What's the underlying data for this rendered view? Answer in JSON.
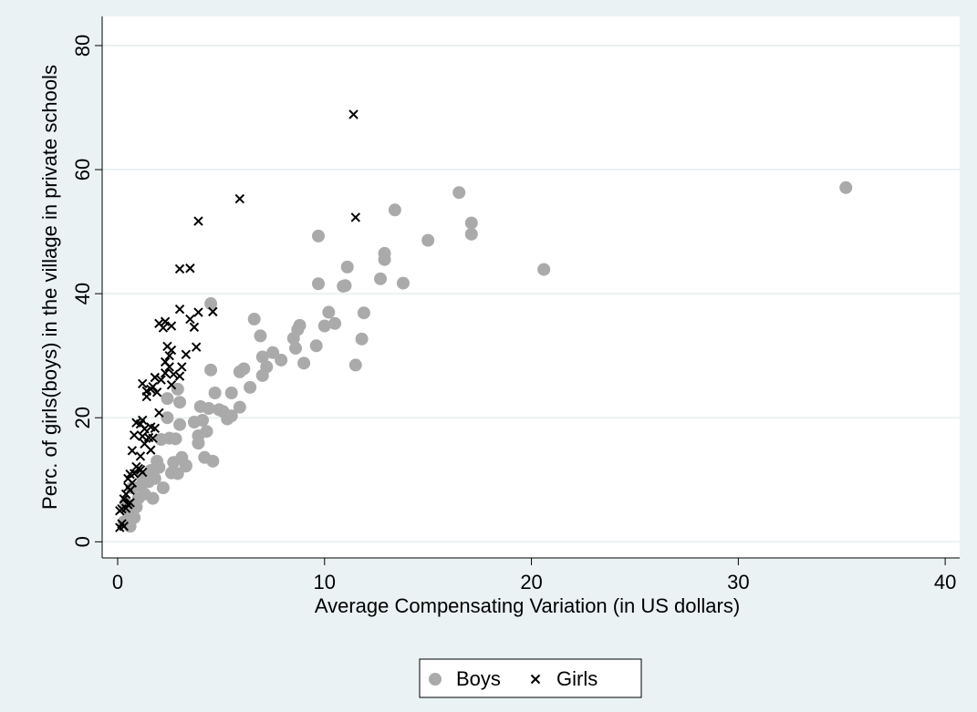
{
  "chart_data": {
    "type": "scatter",
    "x_label": "Average Compensating Variation (in US dollars)",
    "y_label": "Perc. of girls(boys) in the village in private schools",
    "xlim": [
      -0.75,
      40.7
    ],
    "ylim": [
      -2.6,
      84.7
    ],
    "xticks": [
      0,
      10,
      20,
      30,
      40
    ],
    "yticks": [
      0,
      20,
      40,
      60,
      80
    ],
    "grid": true,
    "series": [
      {
        "name": "Boys",
        "color": "#aaaaaa",
        "marker": "circle",
        "x": [
          35.2,
          20.6,
          16.5,
          17.1,
          17.1,
          15,
          13.4,
          12.9,
          12.9,
          13.8,
          12.7,
          11.1,
          10.9,
          11,
          9.7,
          9.7,
          10.2,
          10,
          10.5,
          11.9,
          11.8,
          11.5,
          9.6,
          9.0,
          8.8,
          8.7,
          8.6,
          8.5,
          7.9,
          7.5,
          7.2,
          7.0,
          7.0,
          6.9,
          6.6,
          6.4,
          6.1,
          5.9,
          5.9,
          5.5,
          5.5,
          5.3,
          5.1,
          4.9,
          4.7,
          4.5,
          4.5,
          4.4,
          4.3,
          4.1,
          4.0,
          3.9,
          3.9,
          3.7,
          4.6,
          4.2,
          3.3,
          3.1,
          3.0,
          2.9,
          3.0,
          2.8,
          2.7,
          2.5,
          2.4,
          2.4,
          2.6,
          2.2,
          2.1,
          1.9,
          1.8,
          1.7,
          1.5,
          1.3,
          1.0,
          0.9,
          0.8,
          0.6,
          0.5,
          0.3,
          0.4,
          0.7,
          1.2,
          2.0,
          3.3,
          2.9,
          1.6,
          1.1
        ],
        "y": [
          57.1,
          43.9,
          56.3,
          51.4,
          49.6,
          48.6,
          53.5,
          46.5,
          45.5,
          41.7,
          42.4,
          44.3,
          41.2,
          41.3,
          49.3,
          41.6,
          37.0,
          34.8,
          35.2,
          36.9,
          32.7,
          28.5,
          31.6,
          28.8,
          34.9,
          34.2,
          31.2,
          32.8,
          29.3,
          30.5,
          28.2,
          29.8,
          26.8,
          33.2,
          35.9,
          24.9,
          27.9,
          27.4,
          21.7,
          24.0,
          20.3,
          19.8,
          21.0,
          21.3,
          24.0,
          38.4,
          27.7,
          21.5,
          17.8,
          19.6,
          21.8,
          15.9,
          17.1,
          19.3,
          13.0,
          13.6,
          12.3,
          13.6,
          18.9,
          24.6,
          22.5,
          16.6,
          12.8,
          16.7,
          23.1,
          20.0,
          11.1,
          8.7,
          16.5,
          13.0,
          10.2,
          7.0,
          9.7,
          7.7,
          7.0,
          5.6,
          3.9,
          2.5,
          5.0,
          3.2,
          6.3,
          8.7,
          10.5,
          12.0,
          12.2,
          11.0,
          11.5,
          9.0
        ]
      },
      {
        "name": "Girls",
        "color": "#000000",
        "marker": "x",
        "x": [
          11.4,
          11.5,
          5.9,
          3.9,
          3.0,
          3.5,
          4.6,
          3.9,
          3.0,
          3.5,
          3.7,
          3.8,
          2.0,
          2.3,
          2.6,
          2.2,
          2.4,
          2.6,
          2.5,
          2.3,
          2.5,
          3.3,
          3.1,
          3.0,
          2.7,
          2.3,
          2.1,
          1.8,
          1.7,
          1.9,
          1.4,
          1.2,
          1.4,
          1.6,
          2.6,
          2.0,
          1.8,
          1.6,
          1.3,
          1.1,
          0.9,
          1.2,
          0.8,
          1.2,
          1.5,
          1.7,
          1.3,
          0.7,
          1.1,
          1.6,
          0.9,
          1.1,
          0.8,
          1.2,
          0.6,
          0.5,
          0.7,
          0.5,
          0.4,
          0.3,
          0.5,
          0.2,
          0.1,
          0.4,
          0.6,
          0.2,
          0.1,
          0.3,
          1.0,
          0.6
        ],
        "y": [
          68.9,
          52.3,
          55.3,
          51.7,
          44.0,
          44.1,
          37.1,
          37.0,
          37.5,
          35.9,
          34.6,
          31.4,
          35.2,
          35.5,
          34.8,
          34.5,
          31.5,
          30.9,
          30.0,
          29.0,
          28.2,
          30.2,
          28.2,
          26.7,
          27.0,
          27.2,
          26.1,
          26.5,
          25.0,
          24.1,
          24.3,
          25.5,
          23.4,
          24.6,
          25.3,
          20.8,
          18.3,
          18.5,
          18.2,
          19.0,
          19.2,
          19.6,
          17.2,
          17.0,
          16.8,
          16.7,
          15.8,
          14.7,
          13.8,
          14.8,
          12.1,
          11.6,
          11.0,
          11.2,
          10.9,
          10.2,
          9.5,
          8.8,
          7.7,
          6.9,
          6.0,
          5.3,
          5.0,
          5.4,
          6.3,
          2.9,
          2.3,
          2.5,
          11.8,
          8.3
        ]
      }
    ]
  }
}
